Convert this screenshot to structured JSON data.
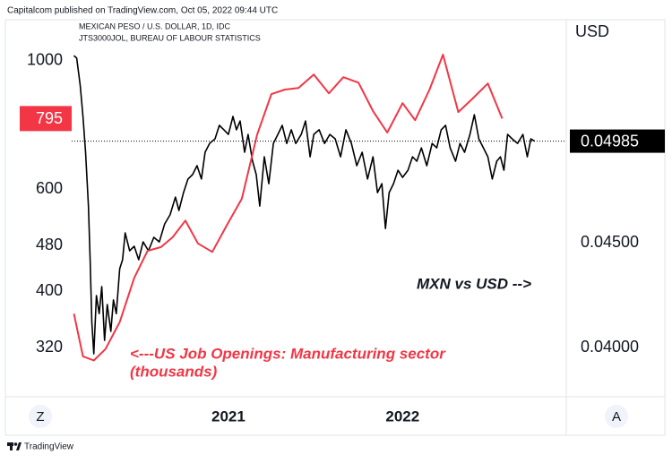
{
  "ui": {
    "header": "Capitalcom published on TradingView.com, Oct 05, 2022 09:44 UTC",
    "buttons": [
      "Z",
      "A"
    ],
    "footer": "TradingView"
  },
  "chart_data": {
    "type": "line",
    "y2label": "USD",
    "annotations": [
      "<---US Job Openings: Manufacturing sector",
      "(thousands)",
      "MXN vs USD -->"
    ],
    "xlim": [
      2020.1,
      2022.94
    ],
    "xticks": [
      2021,
      2022
    ],
    "ylim": [
      266,
      1186
    ],
    "ylog": true,
    "yticks": [
      320,
      400,
      480,
      600,
      1000
    ],
    "y2lim": [
      0.03778,
      0.05573
    ],
    "y2ticks": [
      {
        "value": 0.04,
        "label": "0.04000"
      },
      {
        "value": 0.045,
        "label": "0.04500"
      }
    ],
    "series": [
      {
        "name": "MEXICAN PESO / U.S. DOLLAR, 1D, IDC",
        "color": "#000000",
        "axis": "y2",
        "x": [
          2020.113,
          2020.129,
          2020.149,
          2020.165,
          2020.18,
          2020.196,
          2020.206,
          2020.216,
          2020.227,
          2020.242,
          2020.258,
          2020.273,
          2020.289,
          2020.304,
          2020.325,
          2020.34,
          2020.356,
          2020.376,
          2020.392,
          2020.407,
          2020.433,
          2020.459,
          2020.485,
          2020.51,
          2020.541,
          2020.572,
          2020.603,
          2020.634,
          2020.665,
          2020.696,
          2020.716,
          2020.742,
          2020.768,
          2020.794,
          2020.82,
          2020.845,
          2020.866,
          2020.892,
          2020.923,
          2020.948,
          2020.974,
          2021.0,
          2021.026,
          2021.046,
          2021.067,
          2021.093,
          2021.113,
          2021.139,
          2021.16,
          2021.18,
          2021.206,
          2021.232,
          2021.258,
          2021.284,
          2021.309,
          2021.335,
          2021.361,
          2021.387,
          2021.418,
          2021.443,
          2021.469,
          2021.49,
          2021.521,
          2021.552,
          2021.582,
          2021.613,
          2021.644,
          2021.675,
          2021.706,
          2021.737,
          2021.768,
          2021.799,
          2021.83,
          2021.856,
          2021.881,
          2021.902,
          2021.923,
          2021.948,
          2021.974,
          2022.0,
          2022.031,
          2022.057,
          2022.082,
          2022.108,
          2022.139,
          2022.17,
          2022.196,
          2022.222,
          2022.247,
          2022.273,
          2022.304,
          2022.33,
          2022.356,
          2022.387,
          2022.412,
          2022.438,
          2022.464,
          2022.49,
          2022.515,
          2022.541,
          2022.562,
          2022.582,
          2022.603,
          2022.629,
          2022.66,
          2022.691,
          2022.716,
          2022.737,
          2022.758
        ],
        "values": [
          0.05393,
          0.05381,
          0.05252,
          0.05103,
          0.04932,
          0.04675,
          0.04419,
          0.0412,
          0.0397,
          0.04248,
          0.04162,
          0.04291,
          0.04034,
          0.04205,
          0.04077,
          0.04227,
          0.04162,
          0.04376,
          0.04419,
          0.04547,
          0.04462,
          0.04483,
          0.04419,
          0.04504,
          0.04462,
          0.04526,
          0.04504,
          0.0459,
          0.04633,
          0.04718,
          0.04654,
          0.04739,
          0.04804,
          0.04825,
          0.04868,
          0.04804,
          0.04932,
          0.04974,
          0.04996,
          0.0506,
          0.05039,
          0.05017,
          0.05103,
          0.05039,
          0.05081,
          0.04932,
          0.05017,
          0.04889,
          0.04825,
          0.04675,
          0.0491,
          0.04782,
          0.04974,
          0.05017,
          0.0506,
          0.04974,
          0.05039,
          0.04974,
          0.05017,
          0.05081,
          0.0491,
          0.05017,
          0.05039,
          0.04974,
          0.05017,
          0.04996,
          0.0491,
          0.05039,
          0.04974,
          0.04868,
          0.04932,
          0.04804,
          0.0491,
          0.04739,
          0.04782,
          0.04568,
          0.04739,
          0.04782,
          0.04846,
          0.04812,
          0.04846,
          0.0491,
          0.04889,
          0.04953,
          0.04868,
          0.04974,
          0.04953,
          0.05039,
          0.0506,
          0.04953,
          0.04889,
          0.04974,
          0.04932,
          0.05017,
          0.05111,
          0.04996,
          0.04953,
          0.0491,
          0.04804,
          0.04889,
          0.0491,
          0.04846,
          0.05017,
          0.04996,
          0.04974,
          0.05017,
          0.0491,
          0.04996,
          0.04985
        ]
      },
      {
        "name": "JTS3000JOL, BUREAU OF LABOUR STATISTICS",
        "color": "#f23645",
        "axis": "y",
        "x": [
          2020.113,
          2020.165,
          2020.227,
          2020.294,
          2020.376,
          2020.459,
          2020.536,
          2020.613,
          2020.68,
          2020.753,
          2020.825,
          2020.907,
          2020.995,
          2021.077,
          2021.165,
          2021.247,
          2021.325,
          2021.402,
          2021.49,
          2021.577,
          2021.66,
          2021.747,
          2021.83,
          2021.912,
          2022.0,
          2022.072,
          2022.155,
          2022.232,
          2022.32,
          2022.397,
          2022.49,
          2022.572
        ],
        "values": [
          366,
          309,
          304,
          318,
          354,
          422,
          470,
          477,
          496,
          530,
          484,
          468,
          523,
          578,
          746,
          876,
          892,
          898,
          947,
          879,
          937,
          917,
          819,
          752,
          845,
          790,
          892,
          1025,
          816,
          858,
          914,
          795
        ]
      }
    ]
  }
}
